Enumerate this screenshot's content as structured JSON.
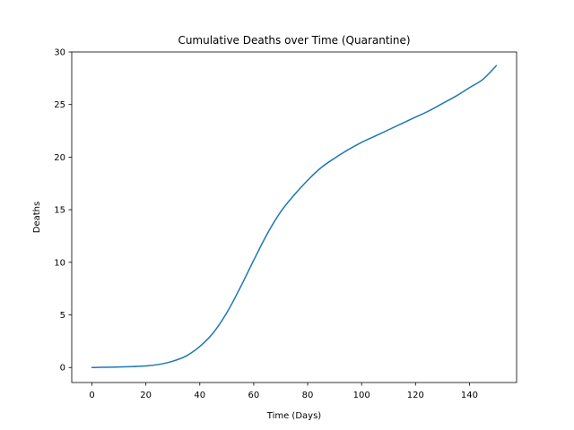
{
  "chart_data": {
    "type": "line",
    "title": "Cumulative Deaths over Time (Quarantine)",
    "xlabel": "Time (Days)",
    "ylabel": "Deaths",
    "xlim": [
      -7.5,
      157.5
    ],
    "ylim": [
      -1.43,
      30
    ],
    "x_ticks": [
      0,
      20,
      40,
      60,
      80,
      100,
      120,
      140
    ],
    "y_ticks": [
      0,
      5,
      10,
      15,
      20,
      25,
      30
    ],
    "grid": false,
    "legend": "none",
    "series": [
      {
        "color": "#1f77b4",
        "x": [
          0,
          10,
          20,
          25,
          30,
          35,
          40,
          45,
          50,
          55,
          60,
          65,
          70,
          75,
          80,
          85,
          90,
          95,
          100,
          105,
          110,
          115,
          120,
          125,
          130,
          135,
          140,
          145,
          150
        ],
        "y": [
          0,
          0.05,
          0.15,
          0.3,
          0.6,
          1.1,
          2.0,
          3.3,
          5.2,
          7.6,
          10.2,
          12.7,
          14.8,
          16.4,
          17.8,
          19.0,
          19.9,
          20.7,
          21.4,
          22.0,
          22.6,
          23.2,
          23.8,
          24.4,
          25.1,
          25.8,
          26.6,
          27.4,
          28.7
        ]
      }
    ]
  }
}
